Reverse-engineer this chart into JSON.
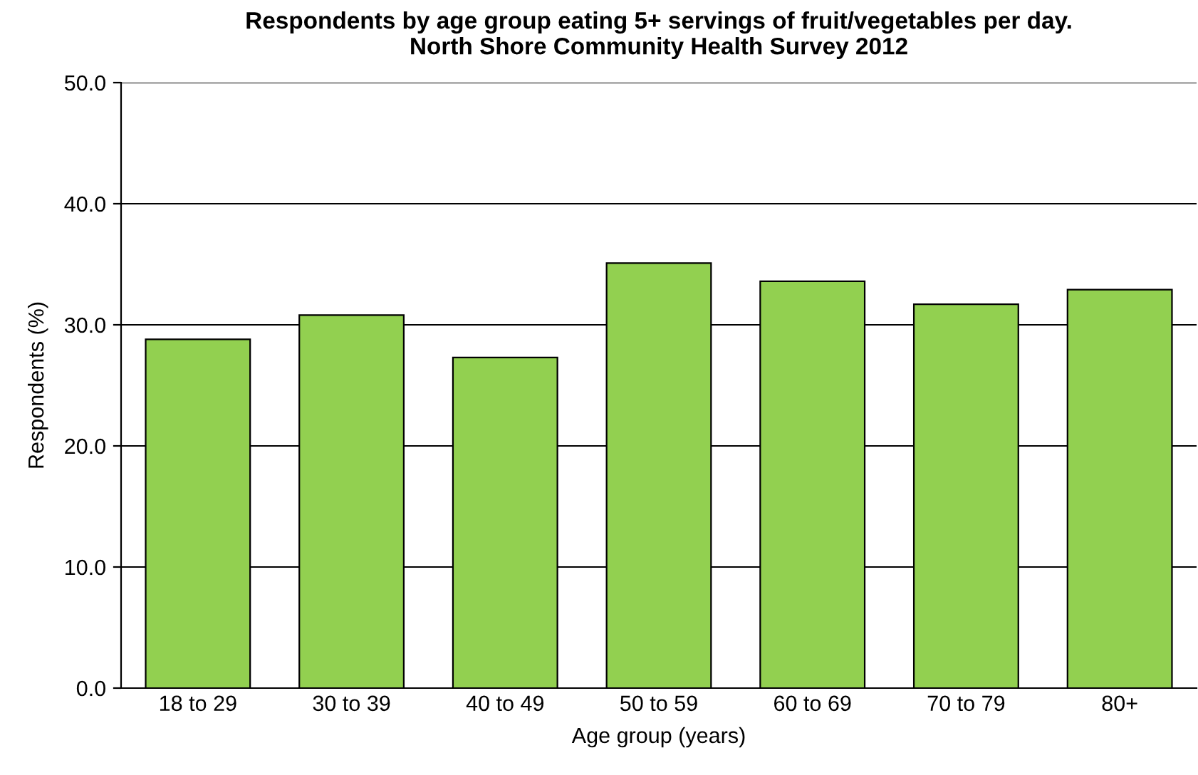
{
  "chart_data": {
    "type": "bar",
    "title": "Respondents by age group eating 5+ servings of fruit/vegetables per day.\nNorth Shore Community Health Survey 2012",
    "categories": [
      "18 to 29",
      "30 to 39",
      "40 to 49",
      "50 to 59",
      "60 to 69",
      "70 to 79",
      "80+"
    ],
    "values": [
      28.8,
      30.8,
      27.3,
      35.1,
      33.6,
      31.7,
      32.9
    ],
    "color": "#92d050",
    "xlabel": "Age group (years)",
    "ylabel": "Respondents (%)",
    "ylim": [
      0,
      50
    ],
    "yticks": [
      {
        "value": 0,
        "label": "0.0"
      },
      {
        "value": 10,
        "label": "10.0"
      },
      {
        "value": 20,
        "label": "20.0"
      },
      {
        "value": 30,
        "label": "30.0"
      },
      {
        "value": 40,
        "label": "40.0"
      },
      {
        "value": 50,
        "label": "50.0"
      }
    ],
    "grid": "y"
  }
}
